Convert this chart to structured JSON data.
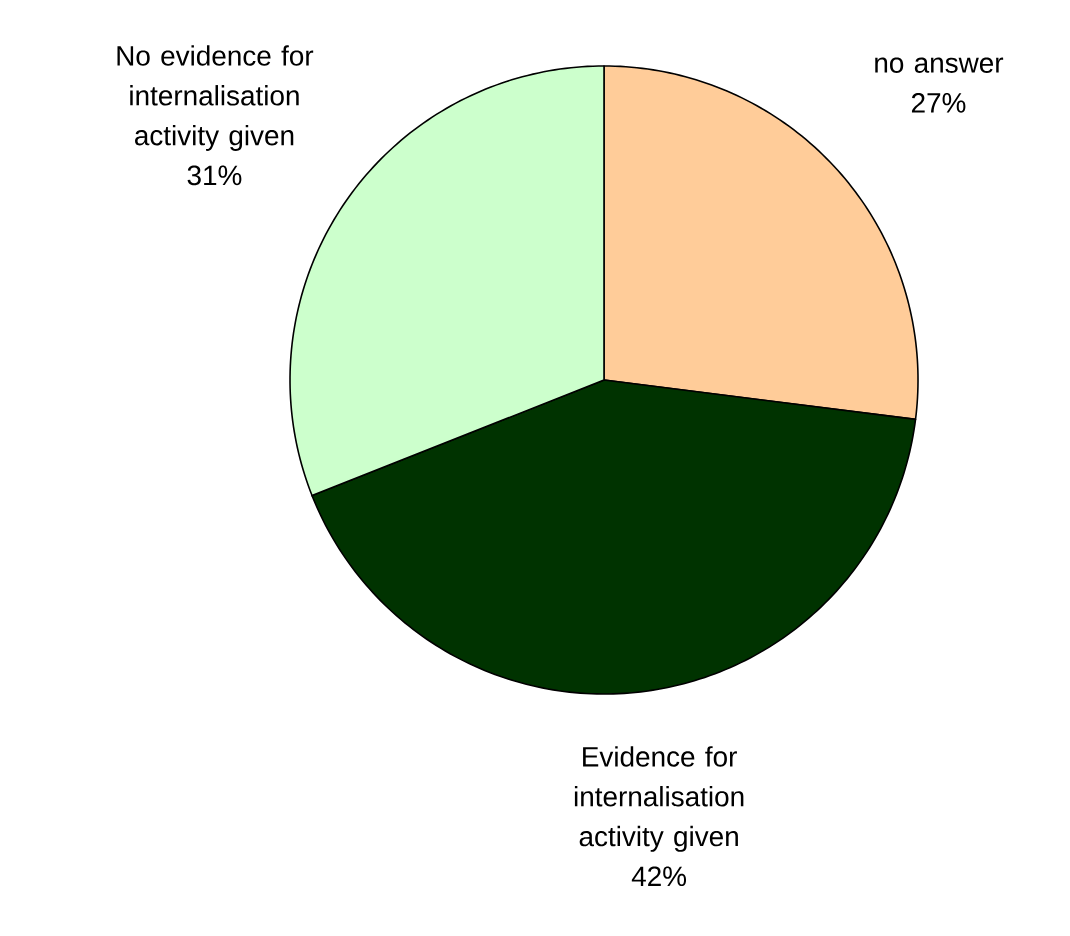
{
  "chart_data": {
    "type": "pie",
    "categories": [
      "no answer",
      "Evidence for internalisation activity given",
      "No evidence for internalisation activity given"
    ],
    "values": [
      27,
      42,
      31
    ],
    "value_labels": [
      "27%",
      "42%",
      "31%"
    ],
    "colors": [
      "#ffcc99",
      "#003300",
      "#ccffcc"
    ]
  }
}
